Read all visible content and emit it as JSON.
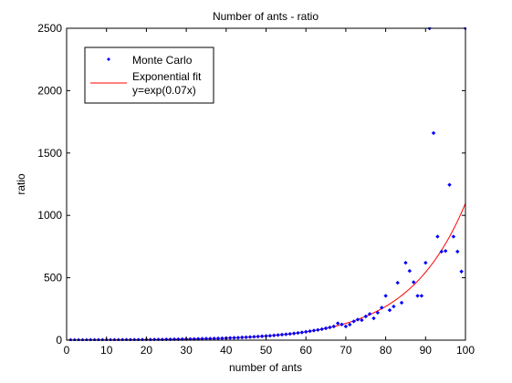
{
  "chart_data": {
    "type": "scatter",
    "title": "Number of ants - ratio",
    "xlabel": "number of ants",
    "ylabel": "ratio",
    "xlim": [
      0,
      100
    ],
    "ylim": [
      0,
      2500
    ],
    "xticks": [
      0,
      10,
      20,
      30,
      40,
      50,
      60,
      70,
      80,
      90,
      100
    ],
    "yticks": [
      0,
      500,
      1000,
      1500,
      2000,
      2500
    ],
    "grid": false,
    "legend_position": "top-left",
    "series": [
      {
        "name": "Monte Carlo",
        "kind": "markers",
        "color": "#0000ff",
        "points": [
          [
            1,
            1
          ],
          [
            2,
            1
          ],
          [
            3,
            1
          ],
          [
            4,
            1
          ],
          [
            5,
            1
          ],
          [
            6,
            2
          ],
          [
            7,
            2
          ],
          [
            8,
            2
          ],
          [
            9,
            2
          ],
          [
            10,
            2
          ],
          [
            11,
            2
          ],
          [
            12,
            2
          ],
          [
            13,
            2
          ],
          [
            14,
            3
          ],
          [
            15,
            3
          ],
          [
            16,
            3
          ],
          [
            17,
            3
          ],
          [
            18,
            3
          ],
          [
            19,
            4
          ],
          [
            20,
            4
          ],
          [
            21,
            4
          ],
          [
            22,
            5
          ],
          [
            23,
            5
          ],
          [
            24,
            5
          ],
          [
            25,
            6
          ],
          [
            26,
            6
          ],
          [
            27,
            7
          ],
          [
            28,
            7
          ],
          [
            29,
            8
          ],
          [
            30,
            8
          ],
          [
            31,
            9
          ],
          [
            32,
            9
          ],
          [
            33,
            10
          ],
          [
            34,
            11
          ],
          [
            35,
            12
          ],
          [
            36,
            12
          ],
          [
            37,
            13
          ],
          [
            38,
            14
          ],
          [
            39,
            15
          ],
          [
            40,
            16
          ],
          [
            41,
            18
          ],
          [
            42,
            19
          ],
          [
            43,
            20
          ],
          [
            44,
            22
          ],
          [
            45,
            23
          ],
          [
            46,
            25
          ],
          [
            47,
            27
          ],
          [
            48,
            29
          ],
          [
            49,
            31
          ],
          [
            50,
            33
          ],
          [
            51,
            35
          ],
          [
            52,
            38
          ],
          [
            53,
            41
          ],
          [
            54,
            44
          ],
          [
            55,
            47
          ],
          [
            56,
            50
          ],
          [
            57,
            54
          ],
          [
            58,
            58
          ],
          [
            59,
            62
          ],
          [
            60,
            67
          ],
          [
            61,
            72
          ],
          [
            62,
            77
          ],
          [
            63,
            82
          ],
          [
            64,
            88
          ],
          [
            65,
            95
          ],
          [
            66,
            102
          ],
          [
            67,
            110
          ],
          [
            68,
            135
          ],
          [
            69,
            126
          ],
          [
            70,
            110
          ],
          [
            71,
            125
          ],
          [
            72,
            150
          ],
          [
            73,
            165
          ],
          [
            74,
            160
          ],
          [
            75,
            190
          ],
          [
            76,
            210
          ],
          [
            77,
            175
          ],
          [
            78,
            220
          ],
          [
            79,
            260
          ],
          [
            80,
            355
          ],
          [
            81,
            240
          ],
          [
            82,
            270
          ],
          [
            83,
            460
          ],
          [
            84,
            300
          ],
          [
            85,
            620
          ],
          [
            86,
            555
          ],
          [
            87,
            465
          ],
          [
            88,
            355
          ],
          [
            89,
            355
          ],
          [
            90,
            620
          ],
          [
            91,
            2500
          ],
          [
            92,
            1660
          ],
          [
            93,
            830
          ],
          [
            94,
            710
          ],
          [
            95,
            715
          ],
          [
            96,
            1245
          ],
          [
            97,
            830
          ],
          [
            98,
            710
          ],
          [
            99,
            550
          ],
          [
            100,
            2500
          ]
        ]
      },
      {
        "name": "Exponential fit\ny=exp(0.07x)",
        "kind": "line",
        "color": "#ff0000",
        "formula_rate": 0.07
      }
    ],
    "legend": [
      {
        "label": "Monte Carlo",
        "color": "#0000ff",
        "kind": "marker"
      },
      {
        "label": "Exponential fit",
        "label2": "y=exp(0.07x)",
        "color": "#ff0000",
        "kind": "line"
      }
    ]
  }
}
